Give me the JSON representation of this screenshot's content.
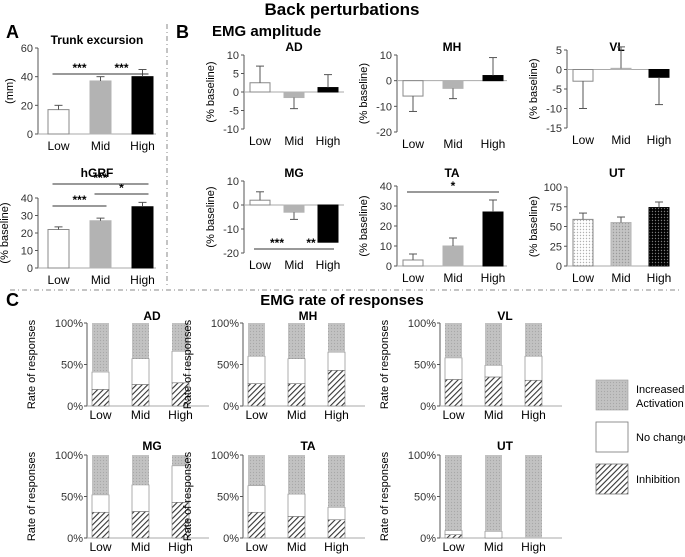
{
  "figure_title": "Back perturbations",
  "panel_letters": {
    "a": "A",
    "b": "B",
    "c": "C"
  },
  "section_titles": {
    "amplitude": "EMG amplitude",
    "rate": "EMG rate of responses"
  },
  "categories": [
    "Low",
    "Mid",
    "High"
  ],
  "colors": {
    "low": "#ffffff",
    "mid": "#b3b3b3",
    "high": "#000000",
    "activation": "#bdbdbd",
    "inhibition_hatch": "#333333",
    "axis": "#555555",
    "separator": "#888888"
  },
  "legend": {
    "activation": "Increased Activation",
    "activation_line1": "Increased",
    "activation_line2": "Activation",
    "no_change": "No change",
    "inhibition": "Inhibition"
  },
  "chart_data": [
    {
      "id": "trunk",
      "type": "bar",
      "title": "Trunk excursion",
      "ylabel": "(mm)",
      "ylim": [
        0,
        60
      ],
      "yticks": [
        0,
        20,
        40,
        60
      ],
      "values": [
        17,
        37,
        40
      ],
      "errors": [
        3,
        3,
        5
      ],
      "significance": [
        {
          "from": "Low",
          "to": "Mid",
          "label": "***"
        },
        {
          "from": "Mid",
          "to": "High",
          "label": "***"
        }
      ]
    },
    {
      "id": "hgrf",
      "type": "bar",
      "title": "hGRF",
      "ylabel": "(% baseline)",
      "ylim": [
        0,
        40
      ],
      "yticks": [
        0,
        10,
        20,
        30,
        40
      ],
      "values": [
        22,
        27,
        35
      ],
      "errors": [
        1.5,
        1.5,
        2.5
      ],
      "significance": [
        {
          "from": "Low",
          "to": "Mid",
          "label": "***"
        },
        {
          "from": "Mid",
          "to": "High",
          "label": "*"
        },
        {
          "from": "Low",
          "to": "High",
          "label": "***"
        }
      ]
    },
    {
      "id": "amp_ad",
      "type": "bar",
      "title": "AD",
      "ylabel": "(% baseline)",
      "ylim": [
        -10,
        10
      ],
      "yticks": [
        -10,
        -5,
        0,
        5,
        10
      ],
      "values": [
        2.5,
        -1.5,
        1.2
      ],
      "errors": [
        4.5,
        3,
        3.5
      ],
      "significance": []
    },
    {
      "id": "amp_mh",
      "type": "bar",
      "title": "MH",
      "ylabel": "(% baseline)",
      "ylim": [
        -20,
        10
      ],
      "yticks": [
        -20,
        -10,
        0,
        10
      ],
      "values": [
        -6,
        -3,
        2
      ],
      "errors": [
        6,
        4,
        7
      ],
      "significance": []
    },
    {
      "id": "amp_vl",
      "type": "bar",
      "title": "VL",
      "ylabel": "(% baseline)",
      "ylim": [
        -15,
        5
      ],
      "yticks": [
        -15,
        -10,
        -5,
        0,
        5
      ],
      "values": [
        -3,
        0.3,
        -2
      ],
      "errors": [
        7,
        5.5,
        7
      ],
      "significance": []
    },
    {
      "id": "amp_mg",
      "type": "bar",
      "title": "MG",
      "ylabel": "(% baseline)",
      "ylim": [
        -20,
        10
      ],
      "yticks": [
        -20,
        -10,
        0,
        10
      ],
      "values": [
        2,
        -3,
        -15.5
      ],
      "errors": [
        3.5,
        3,
        0
      ],
      "bar_labels_below": true,
      "significance": [
        {
          "from": "Low",
          "to": "Mid",
          "label": "***",
          "position": "below"
        },
        {
          "from": "Mid",
          "to": "High",
          "label": "**",
          "position": "below"
        }
      ]
    },
    {
      "id": "amp_ta",
      "type": "bar",
      "title": "TA",
      "ylabel": "(% baseline)",
      "ylim": [
        0,
        40
      ],
      "yticks": [
        0,
        10,
        20,
        30,
        40
      ],
      "values": [
        3,
        10,
        27
      ],
      "errors": [
        3,
        4,
        6
      ],
      "significance": [
        {
          "from": "Low",
          "to": "High",
          "label": "*"
        }
      ]
    },
    {
      "id": "amp_ut",
      "type": "bar",
      "title": "UT",
      "ylabel": "(% baseline)",
      "ylim": [
        0,
        100
      ],
      "yticks": [
        0,
        25,
        50,
        75,
        100
      ],
      "values": [
        59,
        55,
        74
      ],
      "errors": [
        8,
        7,
        7
      ],
      "dotted": true,
      "significance": []
    },
    {
      "id": "rate_ad",
      "type": "stacked_bar",
      "title": "AD",
      "ylabel": "Rate of responses",
      "yticks_pct": [
        0,
        50,
        100
      ],
      "inhibition": [
        20,
        26,
        28
      ],
      "no_change": [
        21,
        31,
        38
      ],
      "activation": [
        59,
        43,
        34
      ]
    },
    {
      "id": "rate_mh",
      "type": "stacked_bar",
      "title": "MH",
      "ylabel": "Rate of responses",
      "yticks_pct": [
        0,
        50,
        100
      ],
      "inhibition": [
        27,
        27,
        43
      ],
      "no_change": [
        33,
        30,
        22
      ],
      "activation": [
        40,
        43,
        35
      ]
    },
    {
      "id": "rate_vl",
      "type": "stacked_bar",
      "title": "VL",
      "ylabel": "Rate of responses",
      "yticks_pct": [
        0,
        50,
        100
      ],
      "inhibition": [
        32,
        35,
        31
      ],
      "no_change": [
        26,
        14,
        29
      ],
      "activation": [
        42,
        51,
        40
      ]
    },
    {
      "id": "rate_mg",
      "type": "stacked_bar",
      "title": "MG",
      "ylabel": "Rate of responses",
      "yticks_pct": [
        0,
        50,
        100
      ],
      "inhibition": [
        31,
        32,
        43
      ],
      "no_change": [
        21,
        32,
        44
      ],
      "activation": [
        48,
        36,
        13
      ]
    },
    {
      "id": "rate_ta",
      "type": "stacked_bar",
      "title": "TA",
      "ylabel": "Rate of responses",
      "yticks_pct": [
        0,
        50,
        100
      ],
      "inhibition": [
        31,
        26,
        22
      ],
      "no_change": [
        32,
        27,
        15
      ],
      "activation": [
        37,
        47,
        63
      ]
    },
    {
      "id": "rate_ut",
      "type": "stacked_bar",
      "title": "UT",
      "ylabel": "Rate of responses",
      "yticks_pct": [
        0,
        50,
        100
      ],
      "inhibition": [
        4,
        0,
        0
      ],
      "no_change": [
        5,
        8,
        0
      ],
      "activation": [
        91,
        92,
        100
      ]
    }
  ]
}
